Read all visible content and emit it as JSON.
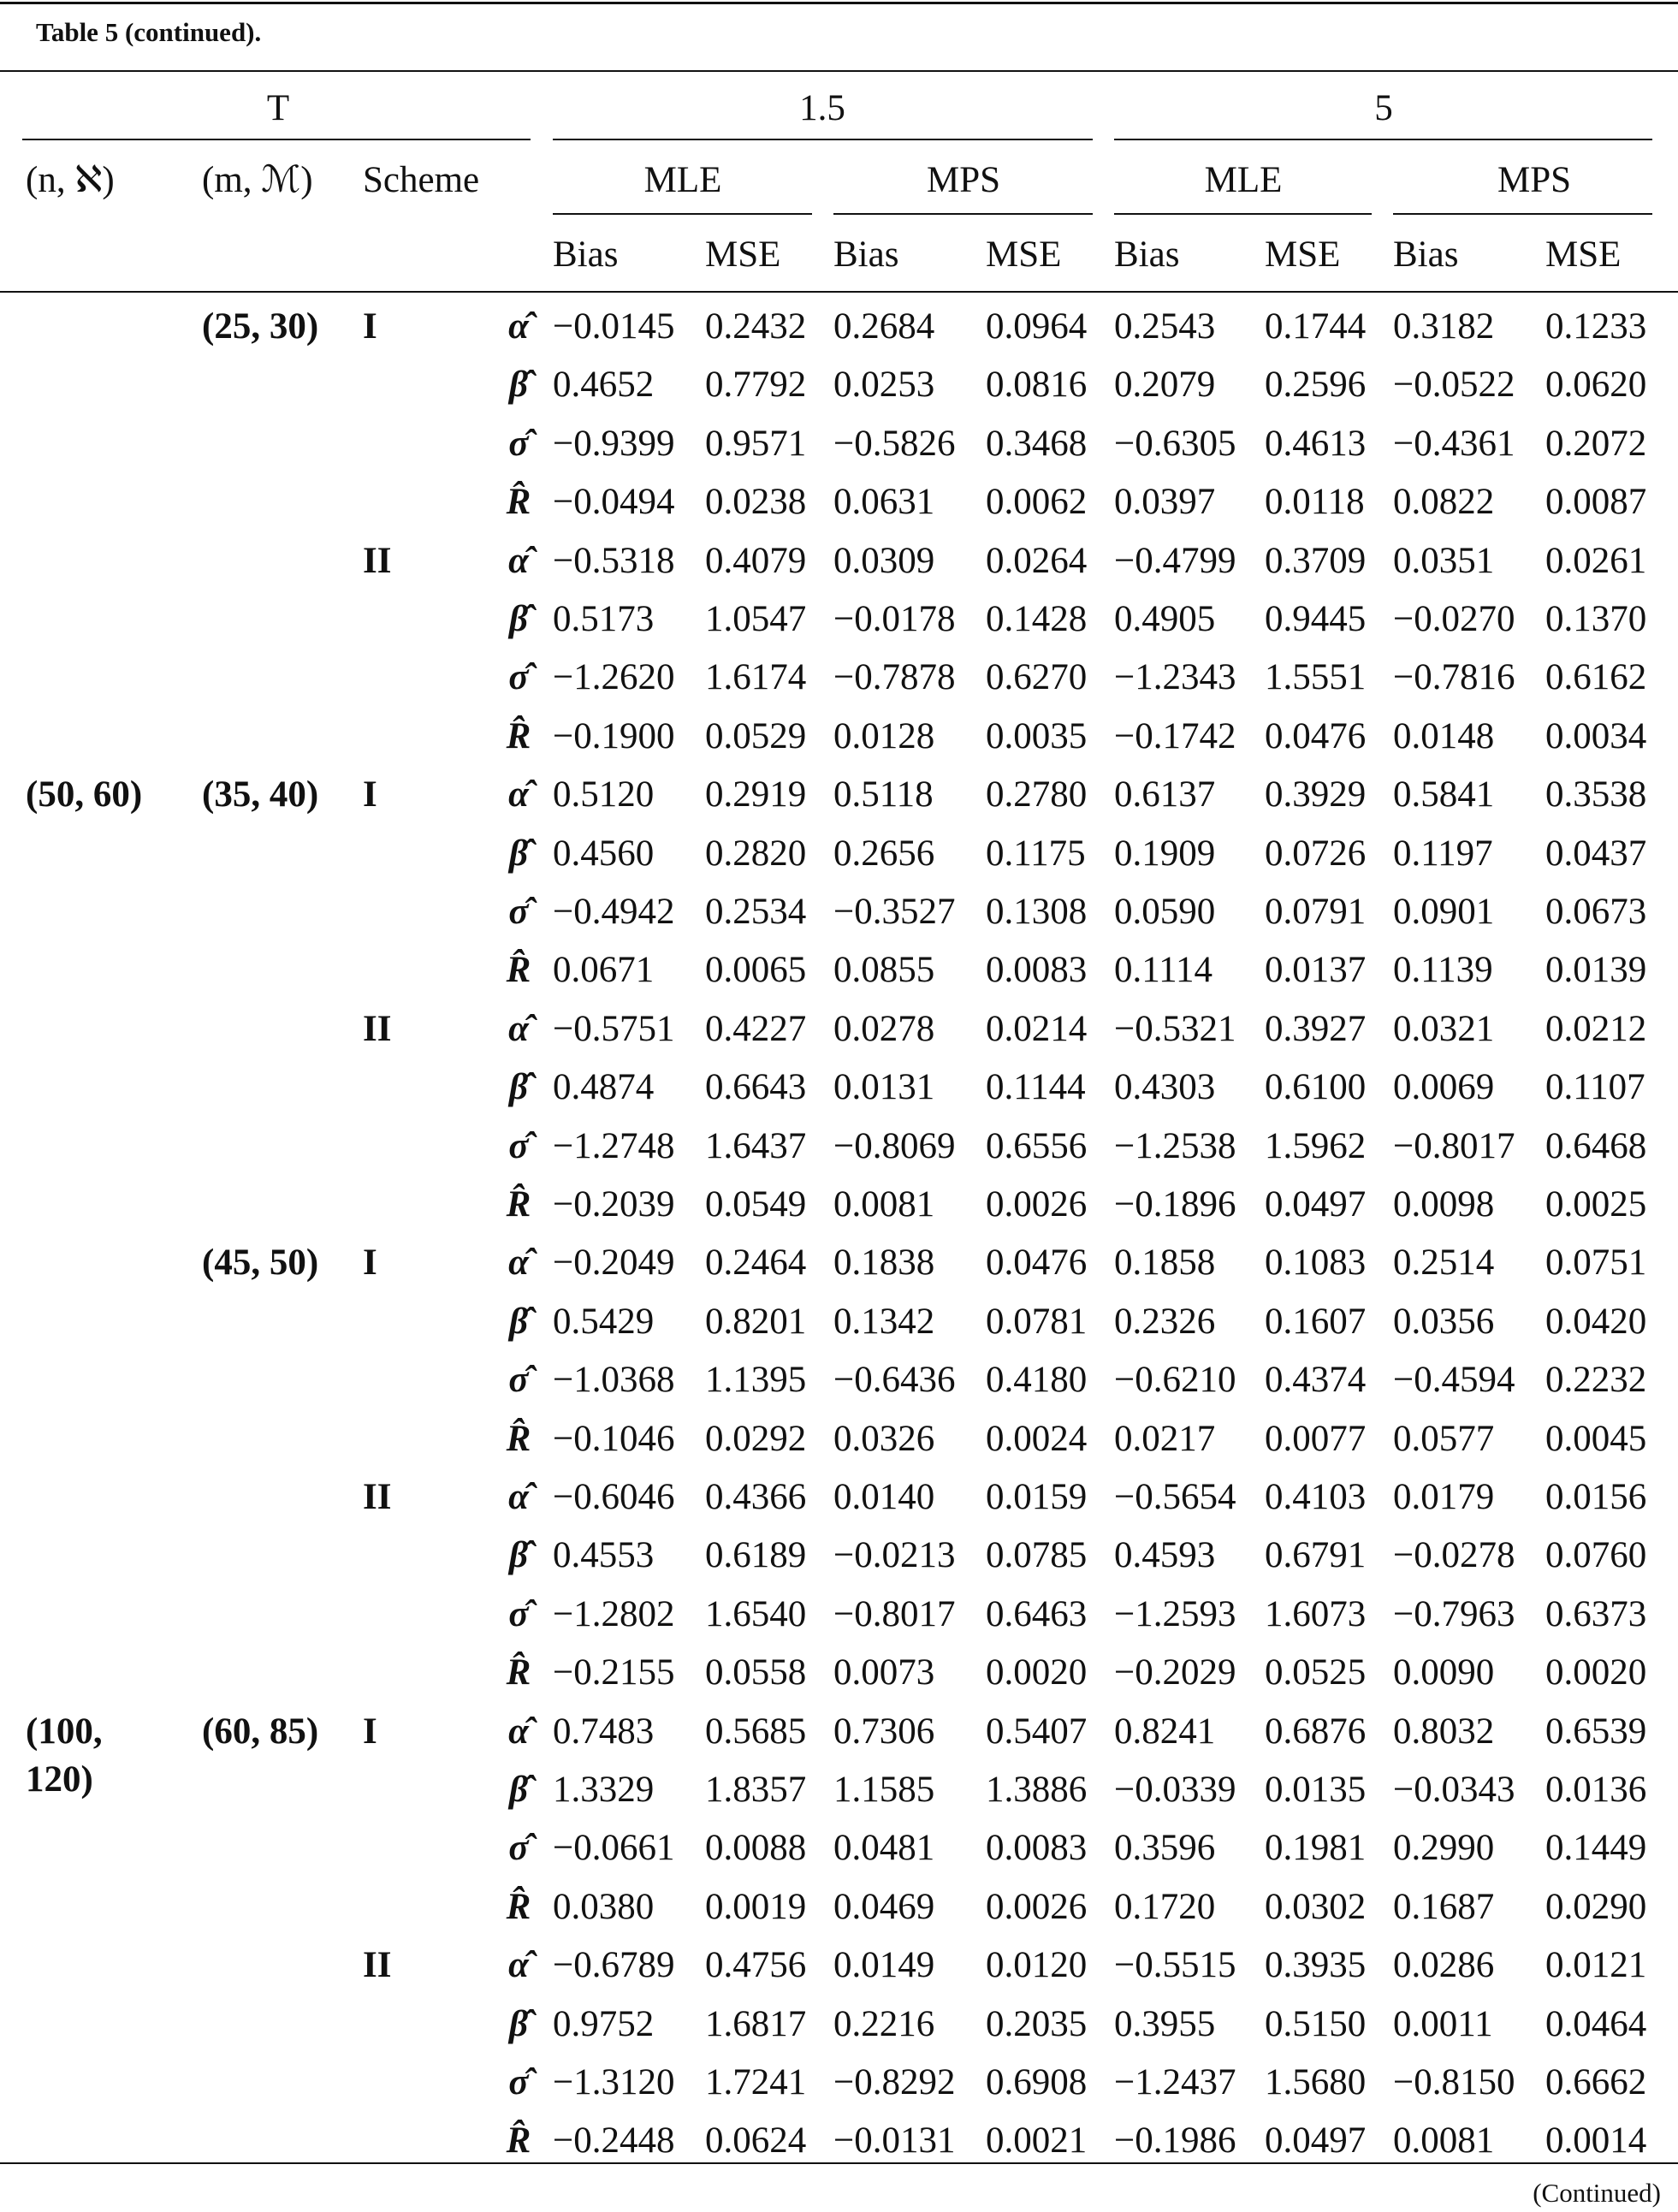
{
  "caption": "Table 5 (continued).",
  "header": {
    "t_label": "T",
    "t_values": [
      "1.5",
      "5"
    ],
    "columns": [
      "(n, ℵ)",
      "(m, ℳ)",
      "Scheme"
    ],
    "methods": [
      "MLE",
      "MPS",
      "MLE",
      "MPS"
    ],
    "stats": [
      "Bias",
      "MSE",
      "Bias",
      "MSE",
      "Bias",
      "MSE",
      "Bias",
      "MSE"
    ]
  },
  "blocks": [
    {
      "m": "(25, 30)",
      "schemes": [
        {
          "scheme": "I",
          "rows": [
            {
              "param": "α̂",
              "values": [
                "−0.0145",
                "0.2432",
                "0.2684",
                "0.0964",
                "0.2543",
                "0.1744",
                "0.3182",
                "0.1233"
              ]
            },
            {
              "param": "β̂",
              "values": [
                "0.4652",
                "0.7792",
                "0.0253",
                "0.0816",
                "0.2079",
                "0.2596",
                "−0.0522",
                "0.0620"
              ]
            },
            {
              "param": "σ̂",
              "values": [
                "−0.9399",
                "0.9571",
                "−0.5826",
                "0.3468",
                "−0.6305",
                "0.4613",
                "−0.4361",
                "0.2072"
              ]
            },
            {
              "param": "R̂",
              "values": [
                "−0.0494",
                "0.0238",
                "0.0631",
                "0.0062",
                "0.0397",
                "0.0118",
                "0.0822",
                "0.0087"
              ]
            }
          ]
        },
        {
          "scheme": "II",
          "rows": [
            {
              "param": "α̂",
              "values": [
                "−0.5318",
                "0.4079",
                "0.0309",
                "0.0264",
                "−0.4799",
                "0.3709",
                "0.0351",
                "0.0261"
              ]
            },
            {
              "param": "β̂",
              "values": [
                "0.5173",
                "1.0547",
                "−0.0178",
                "0.1428",
                "0.4905",
                "0.9445",
                "−0.0270",
                "0.1370"
              ]
            },
            {
              "param": "σ̂",
              "values": [
                "−1.2620",
                "1.6174",
                "−0.7878",
                "0.6270",
                "−1.2343",
                "1.5551",
                "−0.7816",
                "0.6162"
              ]
            },
            {
              "param": "R̂",
              "values": [
                "−0.1900",
                "0.0529",
                "0.0128",
                "0.0035",
                "−0.1742",
                "0.0476",
                "0.0148",
                "0.0034"
              ]
            }
          ]
        }
      ]
    },
    {
      "n": "(50, 60)",
      "m": "(35, 40)",
      "schemes": [
        {
          "scheme": "I",
          "rows": [
            {
              "param": "α̂",
              "values": [
                "0.5120",
                "0.2919",
                "0.5118",
                "0.2780",
                "0.6137",
                "0.3929",
                "0.5841",
                "0.3538"
              ]
            },
            {
              "param": "β̂",
              "values": [
                "0.4560",
                "0.2820",
                "0.2656",
                "0.1175",
                "0.1909",
                "0.0726",
                "0.1197",
                "0.0437"
              ]
            },
            {
              "param": "σ̂",
              "values": [
                "−0.4942",
                "0.2534",
                "−0.3527",
                "0.1308",
                "0.0590",
                "0.0791",
                "0.0901",
                "0.0673"
              ]
            },
            {
              "param": "R̂",
              "values": [
                "0.0671",
                "0.0065",
                "0.0855",
                "0.0083",
                "0.1114",
                "0.0137",
                "0.1139",
                "0.0139"
              ]
            }
          ]
        },
        {
          "scheme": "II",
          "rows": [
            {
              "param": "α̂",
              "values": [
                "−0.5751",
                "0.4227",
                "0.0278",
                "0.0214",
                "−0.5321",
                "0.3927",
                "0.0321",
                "0.0212"
              ]
            },
            {
              "param": "β̂",
              "values": [
                "0.4874",
                "0.6643",
                "0.0131",
                "0.1144",
                "0.4303",
                "0.6100",
                "0.0069",
                "0.1107"
              ]
            },
            {
              "param": "σ̂",
              "values": [
                "−1.2748",
                "1.6437",
                "−0.8069",
                "0.6556",
                "−1.2538",
                "1.5962",
                "−0.8017",
                "0.6468"
              ]
            },
            {
              "param": "R̂",
              "values": [
                "−0.2039",
                "0.0549",
                "0.0081",
                "0.0026",
                "−0.1896",
                "0.0497",
                "0.0098",
                "0.0025"
              ]
            }
          ]
        }
      ]
    },
    {
      "m": "(45, 50)",
      "schemes": [
        {
          "scheme": "I",
          "rows": [
            {
              "param": "α̂",
              "values": [
                "−0.2049",
                "0.2464",
                "0.1838",
                "0.0476",
                "0.1858",
                "0.1083",
                "0.2514",
                "0.0751"
              ]
            },
            {
              "param": "β̂",
              "values": [
                "0.5429",
                "0.8201",
                "0.1342",
                "0.0781",
                "0.2326",
                "0.1607",
                "0.0356",
                "0.0420"
              ]
            },
            {
              "param": "σ̂",
              "values": [
                "−1.0368",
                "1.1395",
                "−0.6436",
                "0.4180",
                "−0.6210",
                "0.4374",
                "−0.4594",
                "0.2232"
              ]
            },
            {
              "param": "R̂",
              "values": [
                "−0.1046",
                "0.0292",
                "0.0326",
                "0.0024",
                "0.0217",
                "0.0077",
                "0.0577",
                "0.0045"
              ]
            }
          ]
        },
        {
          "scheme": "II",
          "rows": [
            {
              "param": "α̂",
              "values": [
                "−0.6046",
                "0.4366",
                "0.0140",
                "0.0159",
                "−0.5654",
                "0.4103",
                "0.0179",
                "0.0156"
              ]
            },
            {
              "param": "β̂",
              "values": [
                "0.4553",
                "0.6189",
                "−0.0213",
                "0.0785",
                "0.4593",
                "0.6791",
                "−0.0278",
                "0.0760"
              ]
            },
            {
              "param": "σ̂",
              "values": [
                "−1.2802",
                "1.6540",
                "−0.8017",
                "0.6463",
                "−1.2593",
                "1.6073",
                "−0.7963",
                "0.6373"
              ]
            },
            {
              "param": "R̂",
              "values": [
                "−0.2155",
                "0.0558",
                "0.0073",
                "0.0020",
                "−0.2029",
                "0.0525",
                "0.0090",
                "0.0020"
              ]
            }
          ]
        }
      ]
    },
    {
      "n": "(100, 120)",
      "m": "(60, 85)",
      "schemes": [
        {
          "scheme": "I",
          "rows": [
            {
              "param": "α̂",
              "values": [
                "0.7483",
                "0.5685",
                "0.7306",
                "0.5407",
                "0.8241",
                "0.6876",
                "0.8032",
                "0.6539"
              ]
            },
            {
              "param": "β̂",
              "values": [
                "1.3329",
                "1.8357",
                "1.1585",
                "1.3886",
                "−0.0339",
                "0.0135",
                "−0.0343",
                "0.0136"
              ]
            },
            {
              "param": "σ̂",
              "values": [
                "−0.0661",
                "0.0088",
                "0.0481",
                "0.0083",
                "0.3596",
                "0.1981",
                "0.2990",
                "0.1449"
              ]
            },
            {
              "param": "R̂",
              "values": [
                "0.0380",
                "0.0019",
                "0.0469",
                "0.0026",
                "0.1720",
                "0.0302",
                "0.1687",
                "0.0290"
              ]
            }
          ]
        },
        {
          "scheme": "II",
          "rows": [
            {
              "param": "α̂",
              "values": [
                "−0.6789",
                "0.4756",
                "0.0149",
                "0.0120",
                "−0.5515",
                "0.3935",
                "0.0286",
                "0.0121"
              ]
            },
            {
              "param": "β̂",
              "values": [
                "0.9752",
                "1.6817",
                "0.2216",
                "0.2035",
                "0.3955",
                "0.5150",
                "0.0011",
                "0.0464"
              ]
            },
            {
              "param": "σ̂",
              "values": [
                "−1.3120",
                "1.7241",
                "−0.8292",
                "0.6908",
                "−1.2437",
                "1.5680",
                "−0.8150",
                "0.6662"
              ]
            },
            {
              "param": "R̂",
              "values": [
                "−0.2448",
                "0.0624",
                "−0.0131",
                "0.0021",
                "−0.1986",
                "0.0497",
                "0.0081",
                "0.0014"
              ]
            }
          ]
        }
      ]
    }
  ],
  "footer": "(Continued)"
}
